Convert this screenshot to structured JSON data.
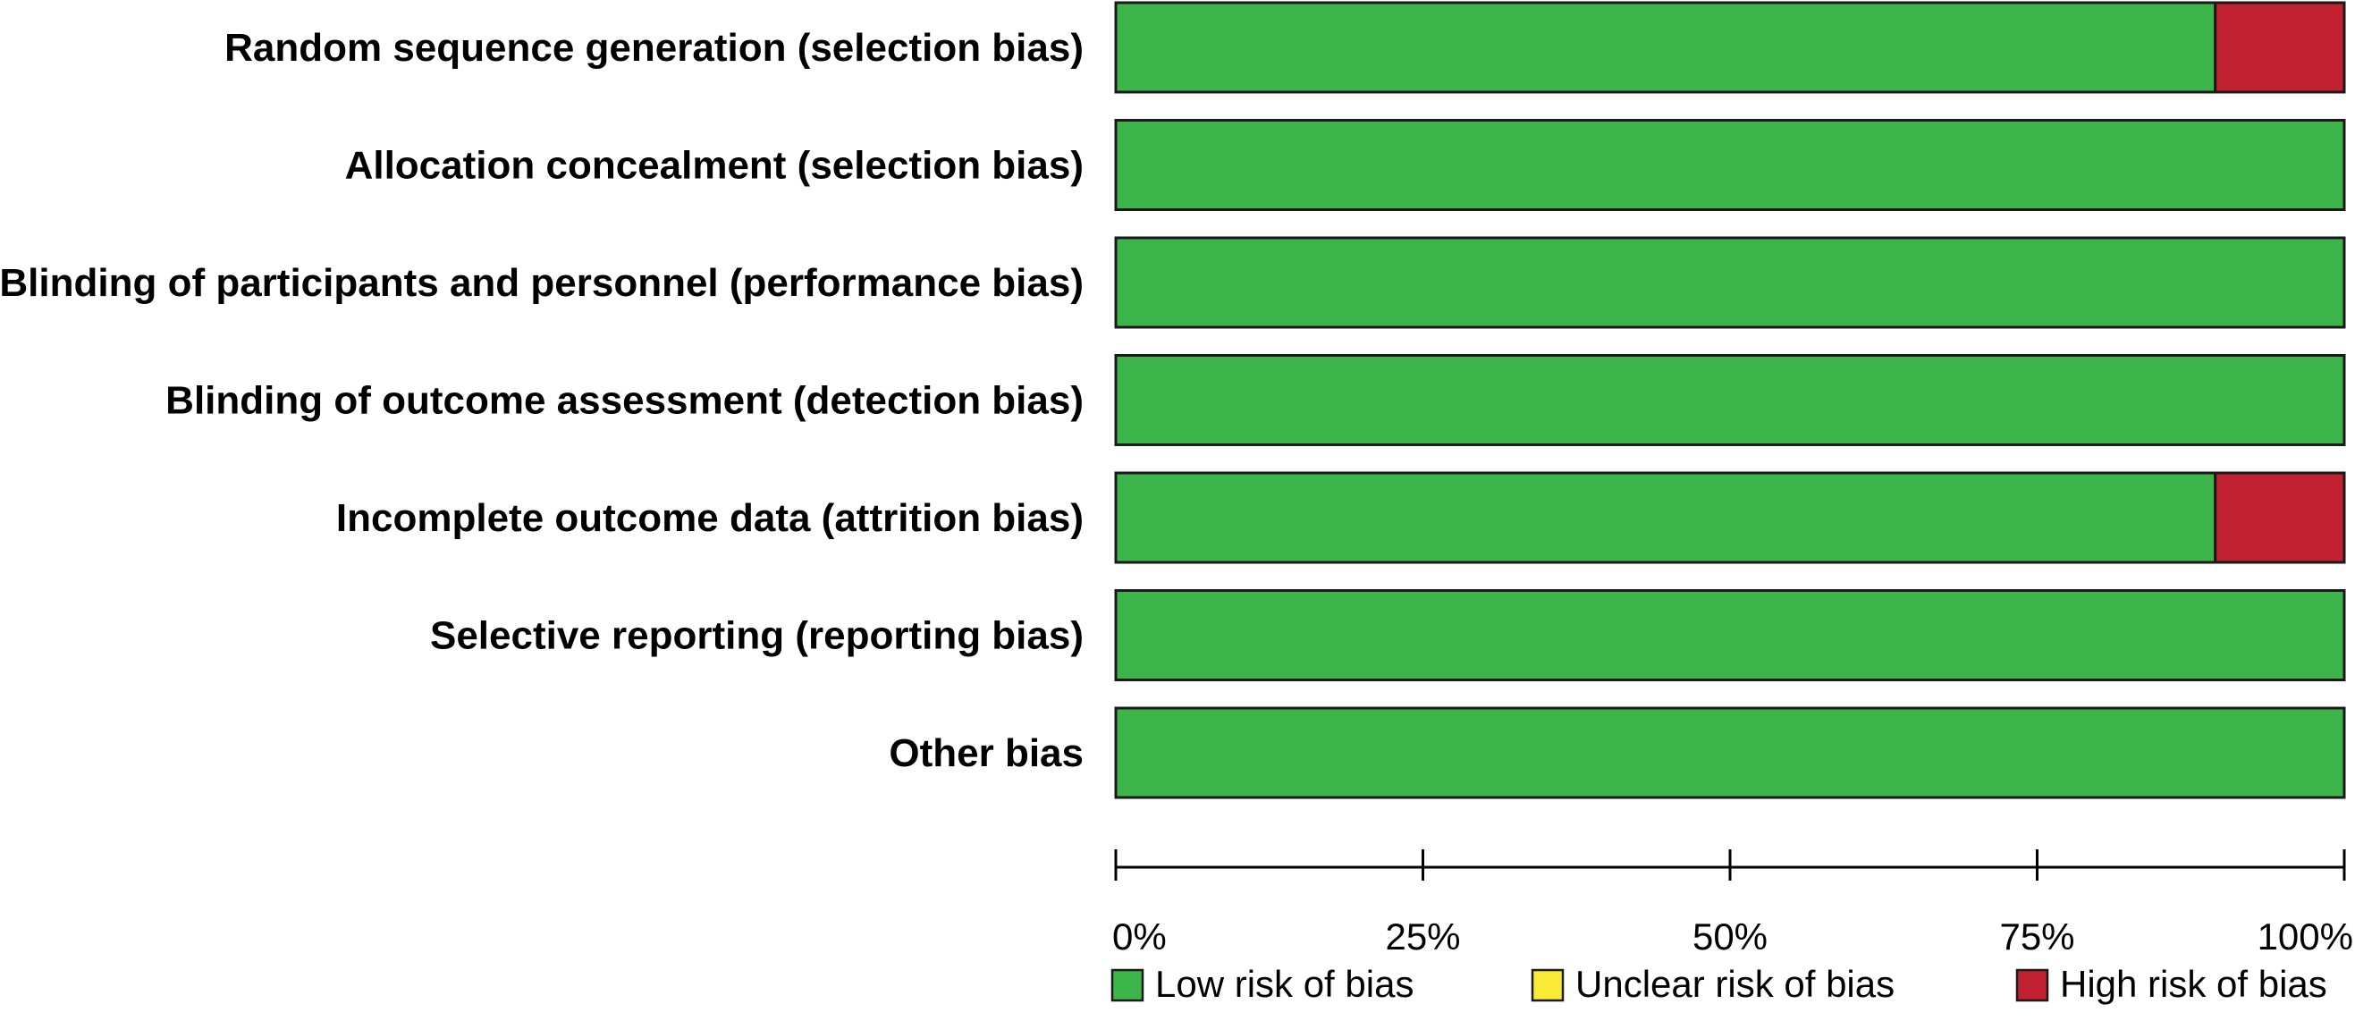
{
  "chart_data": {
    "type": "bar",
    "orientation": "horizontal",
    "stacked": true,
    "categories": [
      "Random sequence generation (selection bias)",
      "Allocation concealment (selection bias)",
      "Blinding of participants and personnel (performance bias)",
      "Blinding of outcome assessment (detection bias)",
      "Incomplete outcome data (attrition bias)",
      "Selective reporting (reporting bias)",
      "Other bias"
    ],
    "series": [
      {
        "name": "Low risk of bias",
        "color": "#3cb54a",
        "values": [
          89.5,
          100,
          100,
          100,
          89.5,
          100,
          100
        ]
      },
      {
        "name": "Unclear risk of bias",
        "color": "#f9ea35",
        "values": [
          0,
          0,
          0,
          0,
          0,
          0,
          0
        ]
      },
      {
        "name": "High risk of bias",
        "color": "#c12030",
        "values": [
          10.5,
          0,
          0,
          0,
          10.5,
          0,
          0
        ]
      }
    ],
    "xlim": [
      0,
      100
    ],
    "xticks": [
      0,
      25,
      50,
      75,
      100
    ],
    "xtick_labels": [
      "0%",
      "25%",
      "50%",
      "75%",
      "100%"
    ],
    "legend": "bottom",
    "grid": false
  }
}
